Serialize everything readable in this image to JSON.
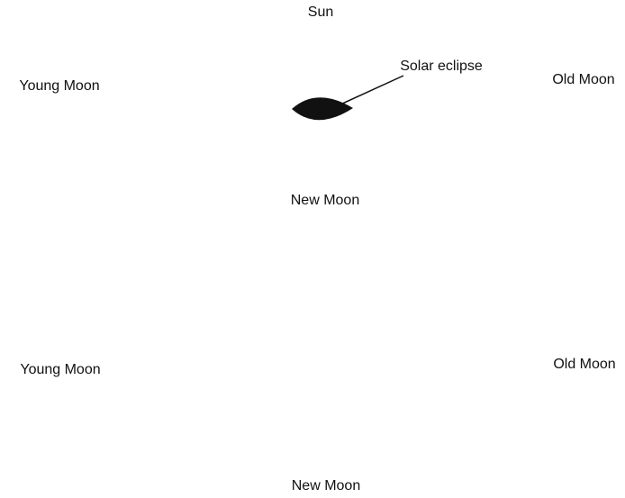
{
  "top": {
    "sun": "Sun",
    "eclipse": "Solar eclipse",
    "young": "Young Moon",
    "old": "Old Moon",
    "new": "New Moon"
  },
  "bottom": {
    "young": "Young Moon",
    "old": "Old Moon",
    "new": "New Moon"
  }
}
